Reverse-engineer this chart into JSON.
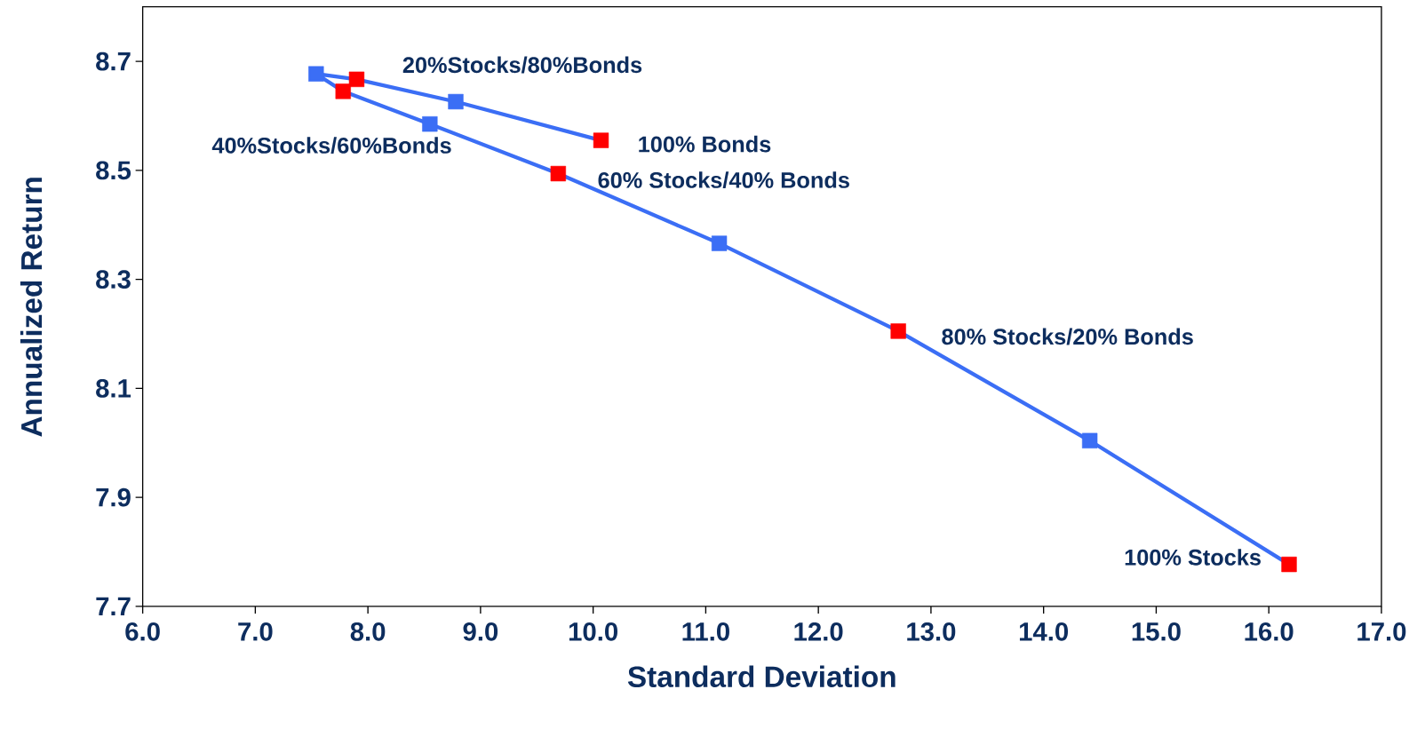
{
  "chart_data": {
    "type": "line",
    "xlabel": "Standard Deviation",
    "ylabel": "Annualized Return",
    "xlim": [
      6,
      17
    ],
    "ylim": [
      7.7,
      8.8
    ],
    "xticks": [
      {
        "value": 6,
        "label": "6.0"
      },
      {
        "value": 7,
        "label": "7.0"
      },
      {
        "value": 8,
        "label": "8.0"
      },
      {
        "value": 9,
        "label": "9.0"
      },
      {
        "value": 10,
        "label": "10.0"
      },
      {
        "value": 11,
        "label": "11.0"
      },
      {
        "value": 12,
        "label": "12.0"
      },
      {
        "value": 13,
        "label": "13.0"
      },
      {
        "value": 14,
        "label": "14.0"
      },
      {
        "value": 15,
        "label": "15.0"
      },
      {
        "value": 16,
        "label": "16.0"
      },
      {
        "value": 17,
        "label": "17.0"
      }
    ],
    "yticks": [
      7.7,
      7.9,
      8.1,
      8.3,
      8.5,
      8.7
    ],
    "marker": "square",
    "line_style": "solid",
    "series": [
      {
        "color": "#3b6ef5",
        "x": [
          10.07,
          8.78,
          7.9,
          7.54,
          7.78,
          8.55,
          9.69,
          11.12,
          12.71,
          14.41,
          16.18
        ],
        "values": [
          8.555,
          8.626,
          8.667,
          8.677,
          8.645,
          8.585,
          8.494,
          8.366,
          8.205,
          8.004,
          7.777
        ],
        "colors": [
          "#ff0000",
          "#3b6ef5",
          "#ff0000",
          "#3b6ef5",
          "#ff0000",
          "#3b6ef5",
          "#ff0000",
          "#3b6ef5",
          "#ff0000",
          "#3b6ef5",
          "#ff0000"
        ]
      }
    ],
    "annotations": [
      {
        "text": "100% Bonds",
        "x": 10.07,
        "y": 8.555
      },
      {
        "text": "20%Stocks/80%Bonds",
        "x": 7.9,
        "y": 8.667
      },
      {
        "text": "40%Stocks/60%Bonds",
        "x": 7.78,
        "y": 8.645
      },
      {
        "text": "60% Stocks/40% Bonds",
        "x": 9.69,
        "y": 8.494
      },
      {
        "text": "80% Stocks/20% Bonds",
        "x": 12.71,
        "y": 8.205
      },
      {
        "text": "100% Stocks",
        "x": 16.18,
        "y": 7.777
      }
    ]
  }
}
